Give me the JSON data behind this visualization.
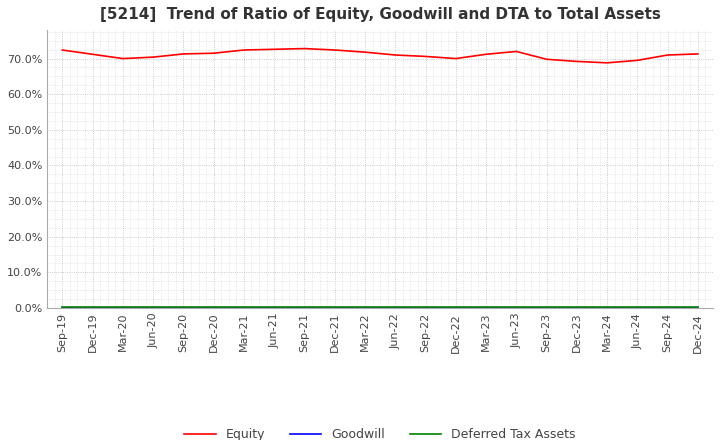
{
  "title": "[5214]  Trend of Ratio of Equity, Goodwill and DTA to Total Assets",
  "x_labels": [
    "Sep-19",
    "Dec-19",
    "Mar-20",
    "Jun-20",
    "Sep-20",
    "Dec-20",
    "Mar-21",
    "Jun-21",
    "Sep-21",
    "Dec-21",
    "Mar-22",
    "Jun-22",
    "Sep-22",
    "Dec-22",
    "Mar-23",
    "Jun-23",
    "Sep-23",
    "Dec-23",
    "Mar-24",
    "Jun-24",
    "Sep-24",
    "Dec-24"
  ],
  "equity": [
    0.724,
    0.712,
    0.7,
    0.704,
    0.713,
    0.715,
    0.724,
    0.726,
    0.728,
    0.724,
    0.718,
    0.71,
    0.706,
    0.7,
    0.712,
    0.72,
    0.698,
    0.692,
    0.688,
    0.695,
    0.71,
    0.713
  ],
  "goodwill": [
    0.0,
    0.0,
    0.0,
    0.0,
    0.0,
    0.0,
    0.0,
    0.0,
    0.0,
    0.0,
    0.0,
    0.0,
    0.0,
    0.0,
    0.0,
    0.0,
    0.0,
    0.0,
    0.0,
    0.0,
    0.0,
    0.0
  ],
  "dta": [
    0.002,
    0.002,
    0.002,
    0.002,
    0.002,
    0.002,
    0.002,
    0.002,
    0.002,
    0.002,
    0.002,
    0.002,
    0.002,
    0.002,
    0.002,
    0.002,
    0.002,
    0.002,
    0.002,
    0.002,
    0.002,
    0.002
  ],
  "equity_color": "#FF0000",
  "goodwill_color": "#0000FF",
  "dta_color": "#008000",
  "ylim": [
    0.0,
    0.78
  ],
  "yticks": [
    0.0,
    0.1,
    0.2,
    0.3,
    0.4,
    0.5,
    0.6,
    0.7
  ],
  "background_color": "#FFFFFF",
  "plot_bg_color": "#FFFFFF",
  "grid_color": "#BBBBBB",
  "title_fontsize": 11,
  "tick_fontsize": 8,
  "legend_labels": [
    "Equity",
    "Goodwill",
    "Deferred Tax Assets"
  ]
}
